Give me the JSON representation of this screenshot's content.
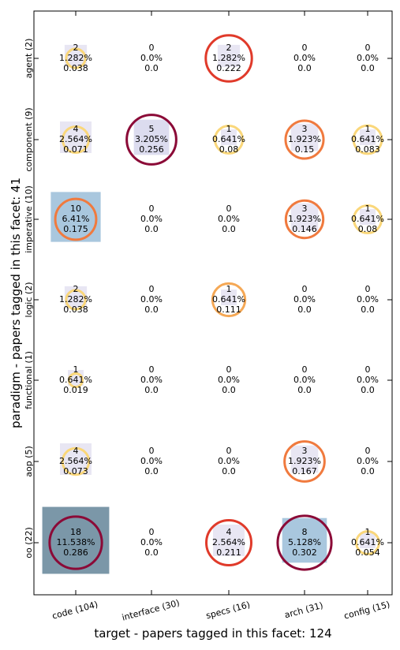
{
  "chart_data": {
    "type": "bubble-matrix",
    "xlabel": "target  -  papers tagged in this facet: 124",
    "ylabel": "paradigm  -  papers tagged in this facet: 41",
    "x_categories": [
      "code (104)",
      "interface (30)",
      "specs (16)",
      "arch (31)",
      "config (15)"
    ],
    "y_categories": [
      "agent (2)",
      "component (9)",
      "imperative (10)",
      "logic (2)",
      "functional (1)",
      "aop (5)",
      "oo (22)"
    ],
    "grid": false,
    "cells": [
      {
        "row": 0,
        "col": 0,
        "count": "2",
        "percent": "1.282%",
        "ratio": "0.038"
      },
      {
        "row": 0,
        "col": 1,
        "count": "0",
        "percent": "0.0%",
        "ratio": "0.0"
      },
      {
        "row": 0,
        "col": 2,
        "count": "2",
        "percent": "1.282%",
        "ratio": "0.222"
      },
      {
        "row": 0,
        "col": 3,
        "count": "0",
        "percent": "0.0%",
        "ratio": "0.0"
      },
      {
        "row": 0,
        "col": 4,
        "count": "0",
        "percent": "0.0%",
        "ratio": "0.0"
      },
      {
        "row": 1,
        "col": 0,
        "count": "4",
        "percent": "2.564%",
        "ratio": "0.071"
      },
      {
        "row": 1,
        "col": 1,
        "count": "5",
        "percent": "3.205%",
        "ratio": "0.256"
      },
      {
        "row": 1,
        "col": 2,
        "count": "1",
        "percent": "0.641%",
        "ratio": "0.08"
      },
      {
        "row": 1,
        "col": 3,
        "count": "3",
        "percent": "1.923%",
        "ratio": "0.15"
      },
      {
        "row": 1,
        "col": 4,
        "count": "1",
        "percent": "0.641%",
        "ratio": "0.083"
      },
      {
        "row": 2,
        "col": 0,
        "count": "10",
        "percent": "6.41%",
        "ratio": "0.175"
      },
      {
        "row": 2,
        "col": 1,
        "count": "0",
        "percent": "0.0%",
        "ratio": "0.0"
      },
      {
        "row": 2,
        "col": 2,
        "count": "0",
        "percent": "0.0%",
        "ratio": "0.0"
      },
      {
        "row": 2,
        "col": 3,
        "count": "3",
        "percent": "1.923%",
        "ratio": "0.146"
      },
      {
        "row": 2,
        "col": 4,
        "count": "1",
        "percent": "0.641%",
        "ratio": "0.08"
      },
      {
        "row": 3,
        "col": 0,
        "count": "2",
        "percent": "1.282%",
        "ratio": "0.038"
      },
      {
        "row": 3,
        "col": 1,
        "count": "0",
        "percent": "0.0%",
        "ratio": "0.0"
      },
      {
        "row": 3,
        "col": 2,
        "count": "1",
        "percent": "0.641%",
        "ratio": "0.111"
      },
      {
        "row": 3,
        "col": 3,
        "count": "0",
        "percent": "0.0%",
        "ratio": "0.0"
      },
      {
        "row": 3,
        "col": 4,
        "count": "0",
        "percent": "0.0%",
        "ratio": "0.0"
      },
      {
        "row": 4,
        "col": 0,
        "count": "1",
        "percent": "0.641%",
        "ratio": "0.019"
      },
      {
        "row": 4,
        "col": 1,
        "count": "0",
        "percent": "0.0%",
        "ratio": "0.0"
      },
      {
        "row": 4,
        "col": 2,
        "count": "0",
        "percent": "0.0%",
        "ratio": "0.0"
      },
      {
        "row": 4,
        "col": 3,
        "count": "0",
        "percent": "0.0%",
        "ratio": "0.0"
      },
      {
        "row": 4,
        "col": 4,
        "count": "0",
        "percent": "0.0%",
        "ratio": "0.0"
      },
      {
        "row": 5,
        "col": 0,
        "count": "4",
        "percent": "2.564%",
        "ratio": "0.073"
      },
      {
        "row": 5,
        "col": 1,
        "count": "0",
        "percent": "0.0%",
        "ratio": "0.0"
      },
      {
        "row": 5,
        "col": 2,
        "count": "0",
        "percent": "0.0%",
        "ratio": "0.0"
      },
      {
        "row": 5,
        "col": 3,
        "count": "3",
        "percent": "1.923%",
        "ratio": "0.167"
      },
      {
        "row": 5,
        "col": 4,
        "count": "0",
        "percent": "0.0%",
        "ratio": "0.0"
      },
      {
        "row": 6,
        "col": 0,
        "count": "18",
        "percent": "11.538%",
        "ratio": "0.286"
      },
      {
        "row": 6,
        "col": 1,
        "count": "0",
        "percent": "0.0%",
        "ratio": "0.0"
      },
      {
        "row": 6,
        "col": 2,
        "count": "4",
        "percent": "2.564%",
        "ratio": "0.211"
      },
      {
        "row": 6,
        "col": 3,
        "count": "8",
        "percent": "5.128%",
        "ratio": "0.302"
      },
      {
        "row": 6,
        "col": 4,
        "count": "1",
        "percent": "0.641%",
        "ratio": "0.054"
      }
    ]
  }
}
